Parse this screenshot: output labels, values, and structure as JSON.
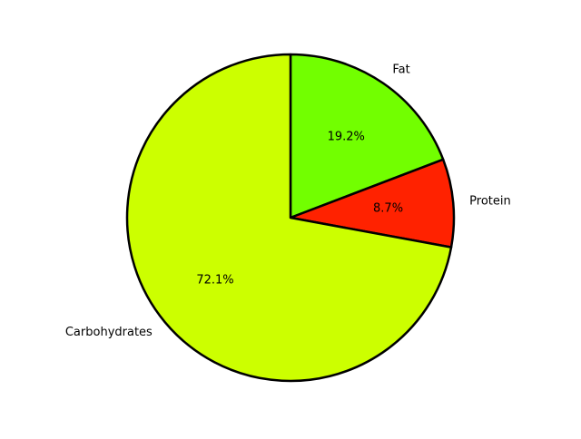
{
  "chart_data": {
    "type": "pie",
    "title": "",
    "categories": [
      "Fat",
      "Protein",
      "Carbohydrates"
    ],
    "values": [
      19.2,
      8.7,
      72.1
    ],
    "value_labels": [
      "19.2%",
      "8.7%",
      "72.1%"
    ],
    "colors": [
      "#72ff00",
      "#ff2200",
      "#ccff00"
    ],
    "edge_color": "#000000",
    "start_angle_deg": 90,
    "direction": "clockwise",
    "legend": "none"
  }
}
